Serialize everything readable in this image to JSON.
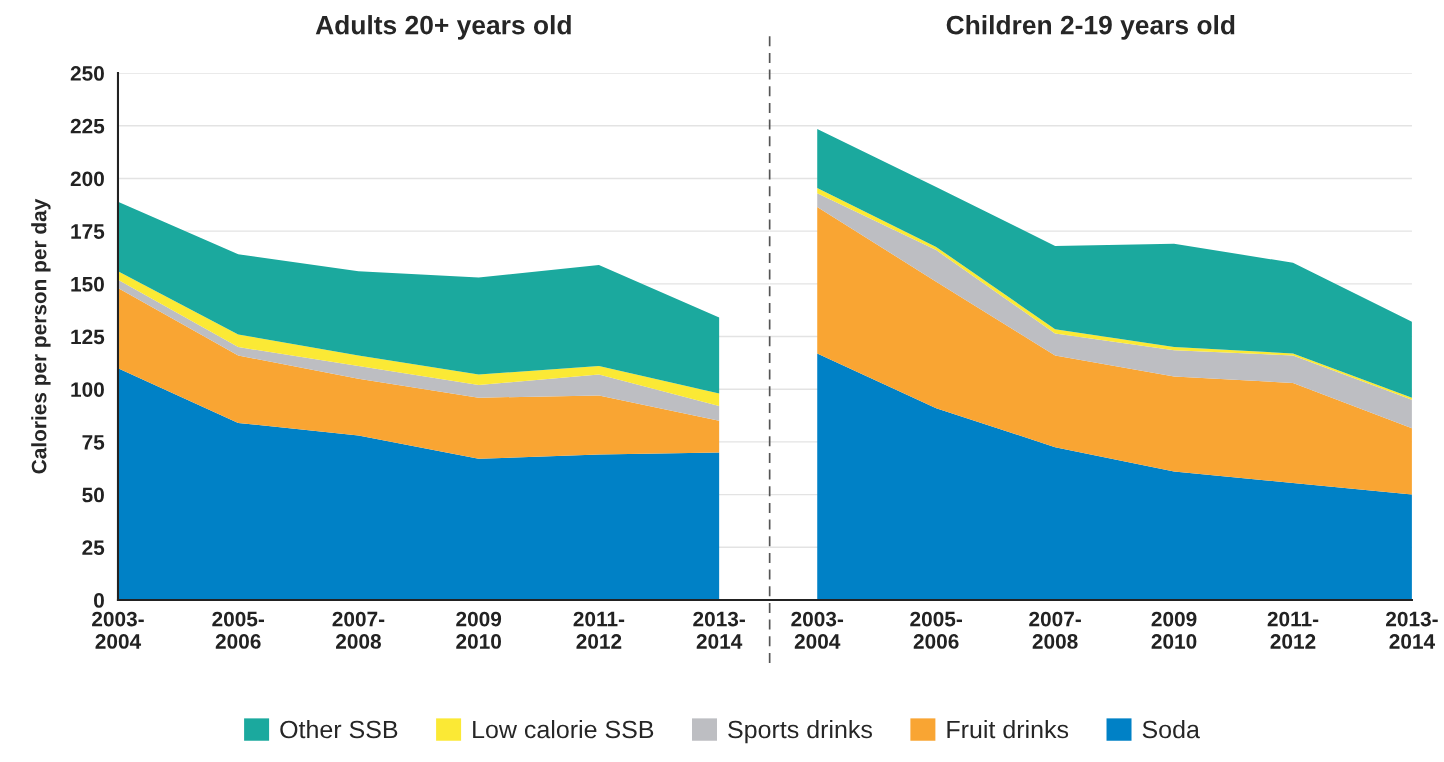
{
  "chart_data": [
    {
      "type": "area",
      "stacked": true,
      "title": "Adults 20+ years old",
      "ylabel": "Calories per person per day",
      "categories": [
        "2003-\n2004",
        "2005-\n2006",
        "2007-\n2008",
        "2009\n2010",
        "2011-\n2012",
        "2013-\n2014"
      ],
      "ylim": [
        0,
        250
      ],
      "yticks": [
        0,
        25,
        50,
        75,
        100,
        125,
        150,
        175,
        200,
        225,
        250
      ],
      "grid": "y",
      "legend": "bottom",
      "series": [
        {
          "name": "Soda",
          "color": "#0081c6",
          "values": [
            110,
            84,
            78,
            67,
            69,
            70
          ]
        },
        {
          "name": "Fruit drinks",
          "color": "#f9a533",
          "values": [
            38,
            32,
            27,
            29,
            28,
            15
          ]
        },
        {
          "name": "Sports drinks",
          "color": "#bdbec2",
          "values": [
            4,
            4,
            6,
            6,
            10,
            7
          ]
        },
        {
          "name": "Low calorie SSB",
          "color": "#fbe935",
          "values": [
            4,
            6,
            5,
            5,
            4,
            6
          ]
        },
        {
          "name": "Other SSB",
          "color": "#1ba99e",
          "values": [
            33,
            38,
            40,
            46,
            48,
            36
          ]
        }
      ]
    },
    {
      "type": "area",
      "stacked": true,
      "title": "Children 2-19 years old",
      "categories": [
        "2003-\n2004",
        "2005-\n2006",
        "2007-\n2008",
        "2009\n2010",
        "2011-\n2012",
        "2013-\n2014"
      ],
      "ylim": [
        0,
        250
      ],
      "yticks": [
        0,
        25,
        50,
        75,
        100,
        125,
        150,
        175,
        200,
        225,
        250
      ],
      "grid": "y",
      "tick_labels": "x",
      "series": [
        {
          "name": "Soda",
          "color": "#0081c6",
          "values": [
            117,
            91,
            72.5,
            61,
            55.5,
            50
          ]
        },
        {
          "name": "Fruit drinks",
          "color": "#f9a533",
          "values": [
            69.5,
            60,
            43.5,
            45,
            47.5,
            31.5
          ]
        },
        {
          "name": "Sports drinks",
          "color": "#bdbec2",
          "values": [
            6.5,
            15,
            10.5,
            12.5,
            13,
            13.5
          ]
        },
        {
          "name": "Low calorie SSB",
          "color": "#fbe935",
          "values": [
            2.5,
            1.5,
            2,
            1.5,
            1,
            1
          ]
        },
        {
          "name": "Other SSB",
          "color": "#1ba99e",
          "values": [
            28,
            28.5,
            39.5,
            49,
            43,
            36
          ]
        }
      ]
    }
  ]
}
